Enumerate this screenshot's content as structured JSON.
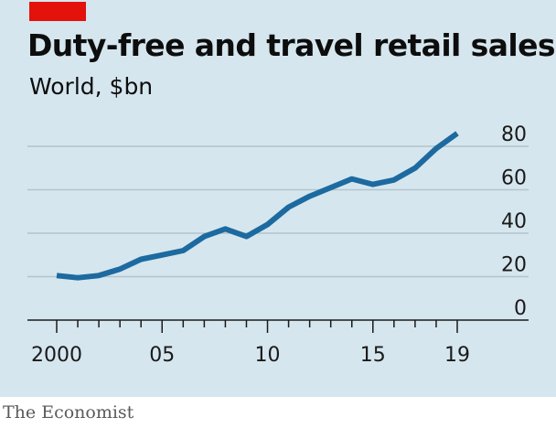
{
  "header": {
    "title": "Duty-free and travel retail sales",
    "subtitle": "World, $bn"
  },
  "footer": {
    "source": "The Economist"
  },
  "colors": {
    "background": "#d6e6ee",
    "line": "#1c6aa0",
    "accent": "#e3120b",
    "grid": "#b3c3cb"
  },
  "chart_data": {
    "type": "line",
    "title": "Duty-free and travel retail sales",
    "subtitle": "World, $bn",
    "x": [
      2000,
      2001,
      2002,
      2003,
      2004,
      2005,
      2006,
      2007,
      2008,
      2009,
      2010,
      2011,
      2012,
      2013,
      2014,
      2015,
      2016,
      2017,
      2018,
      2019
    ],
    "series": [
      {
        "values": [
          20.5,
          19.5,
          20.5,
          23.5,
          28,
          30,
          32,
          38.5,
          42,
          38.5,
          44,
          52,
          57,
          61,
          65,
          62.5,
          64.5,
          70,
          79,
          86
        ]
      }
    ],
    "ylim": [
      0,
      80
    ],
    "yticks": [
      0,
      20,
      40,
      60,
      80
    ],
    "ytick_labels": [
      "0",
      "20",
      "40",
      "60",
      "80"
    ],
    "xlim": [
      2000,
      2019
    ],
    "xtick_labels": [
      {
        "x": 2000,
        "label": "2000"
      },
      {
        "x": 2005,
        "label": "05"
      },
      {
        "x": 2010,
        "label": "10"
      },
      {
        "x": 2015,
        "label": "15"
      },
      {
        "x": 2019,
        "label": "19"
      }
    ],
    "grid": true,
    "legend": "none"
  }
}
